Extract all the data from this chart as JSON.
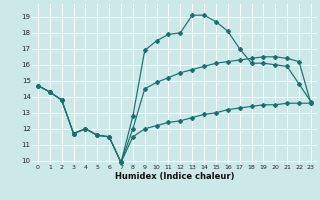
{
  "xlabel": "Humidex (Indice chaleur)",
  "bg_color": "#cce8e8",
  "grid_color": "#ffffff",
  "line_color": "#1a7070",
  "xlim": [
    -0.5,
    23.5
  ],
  "ylim": [
    9.8,
    19.8
  ],
  "yticks": [
    10,
    11,
    12,
    13,
    14,
    15,
    16,
    17,
    18,
    19
  ],
  "xticks": [
    0,
    1,
    2,
    3,
    4,
    5,
    6,
    7,
    8,
    9,
    10,
    11,
    12,
    13,
    14,
    15,
    16,
    17,
    18,
    19,
    20,
    21,
    22,
    23
  ],
  "line1_x": [
    0,
    1,
    2,
    3,
    4,
    5,
    6,
    7,
    8,
    9,
    10,
    11,
    12,
    13,
    14,
    15,
    16,
    17,
    18,
    19,
    20,
    21,
    22,
    23
  ],
  "line1_y": [
    14.7,
    14.3,
    13.8,
    11.7,
    12.0,
    11.6,
    11.5,
    9.9,
    12.8,
    16.9,
    17.5,
    17.9,
    18.0,
    19.1,
    19.1,
    18.7,
    18.1,
    17.0,
    16.1,
    16.1,
    16.0,
    15.9,
    14.8,
    13.7
  ],
  "line2_x": [
    0,
    1,
    2,
    3,
    4,
    5,
    6,
    7,
    8,
    9,
    10,
    11,
    12,
    13,
    14,
    15,
    16,
    17,
    18,
    19,
    20,
    21,
    22,
    23
  ],
  "line2_y": [
    14.7,
    14.3,
    13.8,
    11.7,
    12.0,
    11.6,
    11.5,
    9.9,
    12.0,
    14.5,
    14.9,
    15.2,
    15.5,
    15.7,
    15.9,
    16.1,
    16.2,
    16.3,
    16.4,
    16.5,
    16.5,
    16.4,
    16.2,
    13.6
  ],
  "line3_x": [
    0,
    1,
    2,
    3,
    4,
    5,
    6,
    7,
    8,
    9,
    10,
    11,
    12,
    13,
    14,
    15,
    16,
    17,
    18,
    19,
    20,
    21,
    22,
    23
  ],
  "line3_y": [
    14.7,
    14.3,
    13.8,
    11.7,
    12.0,
    11.6,
    11.5,
    9.9,
    11.5,
    12.0,
    12.2,
    12.4,
    12.5,
    12.7,
    12.9,
    13.0,
    13.2,
    13.3,
    13.4,
    13.5,
    13.5,
    13.6,
    13.6,
    13.6
  ]
}
